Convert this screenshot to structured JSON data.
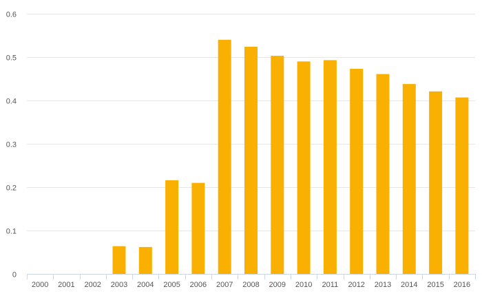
{
  "chart_data": {
    "type": "bar",
    "categories": [
      "2000",
      "2001",
      "2002",
      "2003",
      "2004",
      "2005",
      "2006",
      "2007",
      "2008",
      "2009",
      "2010",
      "2011",
      "2012",
      "2013",
      "2014",
      "2015",
      "2016"
    ],
    "series": [
      {
        "values": [
          0,
          0,
          0,
          0.064,
          0.062,
          0.216,
          0.21,
          0.54,
          0.524,
          0.503,
          0.49,
          0.493,
          0.473,
          0.461,
          0.438,
          0.421,
          0.407
        ]
      }
    ],
    "yticks": [
      "0",
      "0.1",
      "0.2",
      "0.3",
      "0.4",
      "0.5",
      "0.6"
    ],
    "ylim": [
      0,
      0.6
    ],
    "grid": true,
    "bar_color": "#f9b000",
    "axis_color": "#ccd6eb",
    "grid_color": "#e6e6e6"
  }
}
